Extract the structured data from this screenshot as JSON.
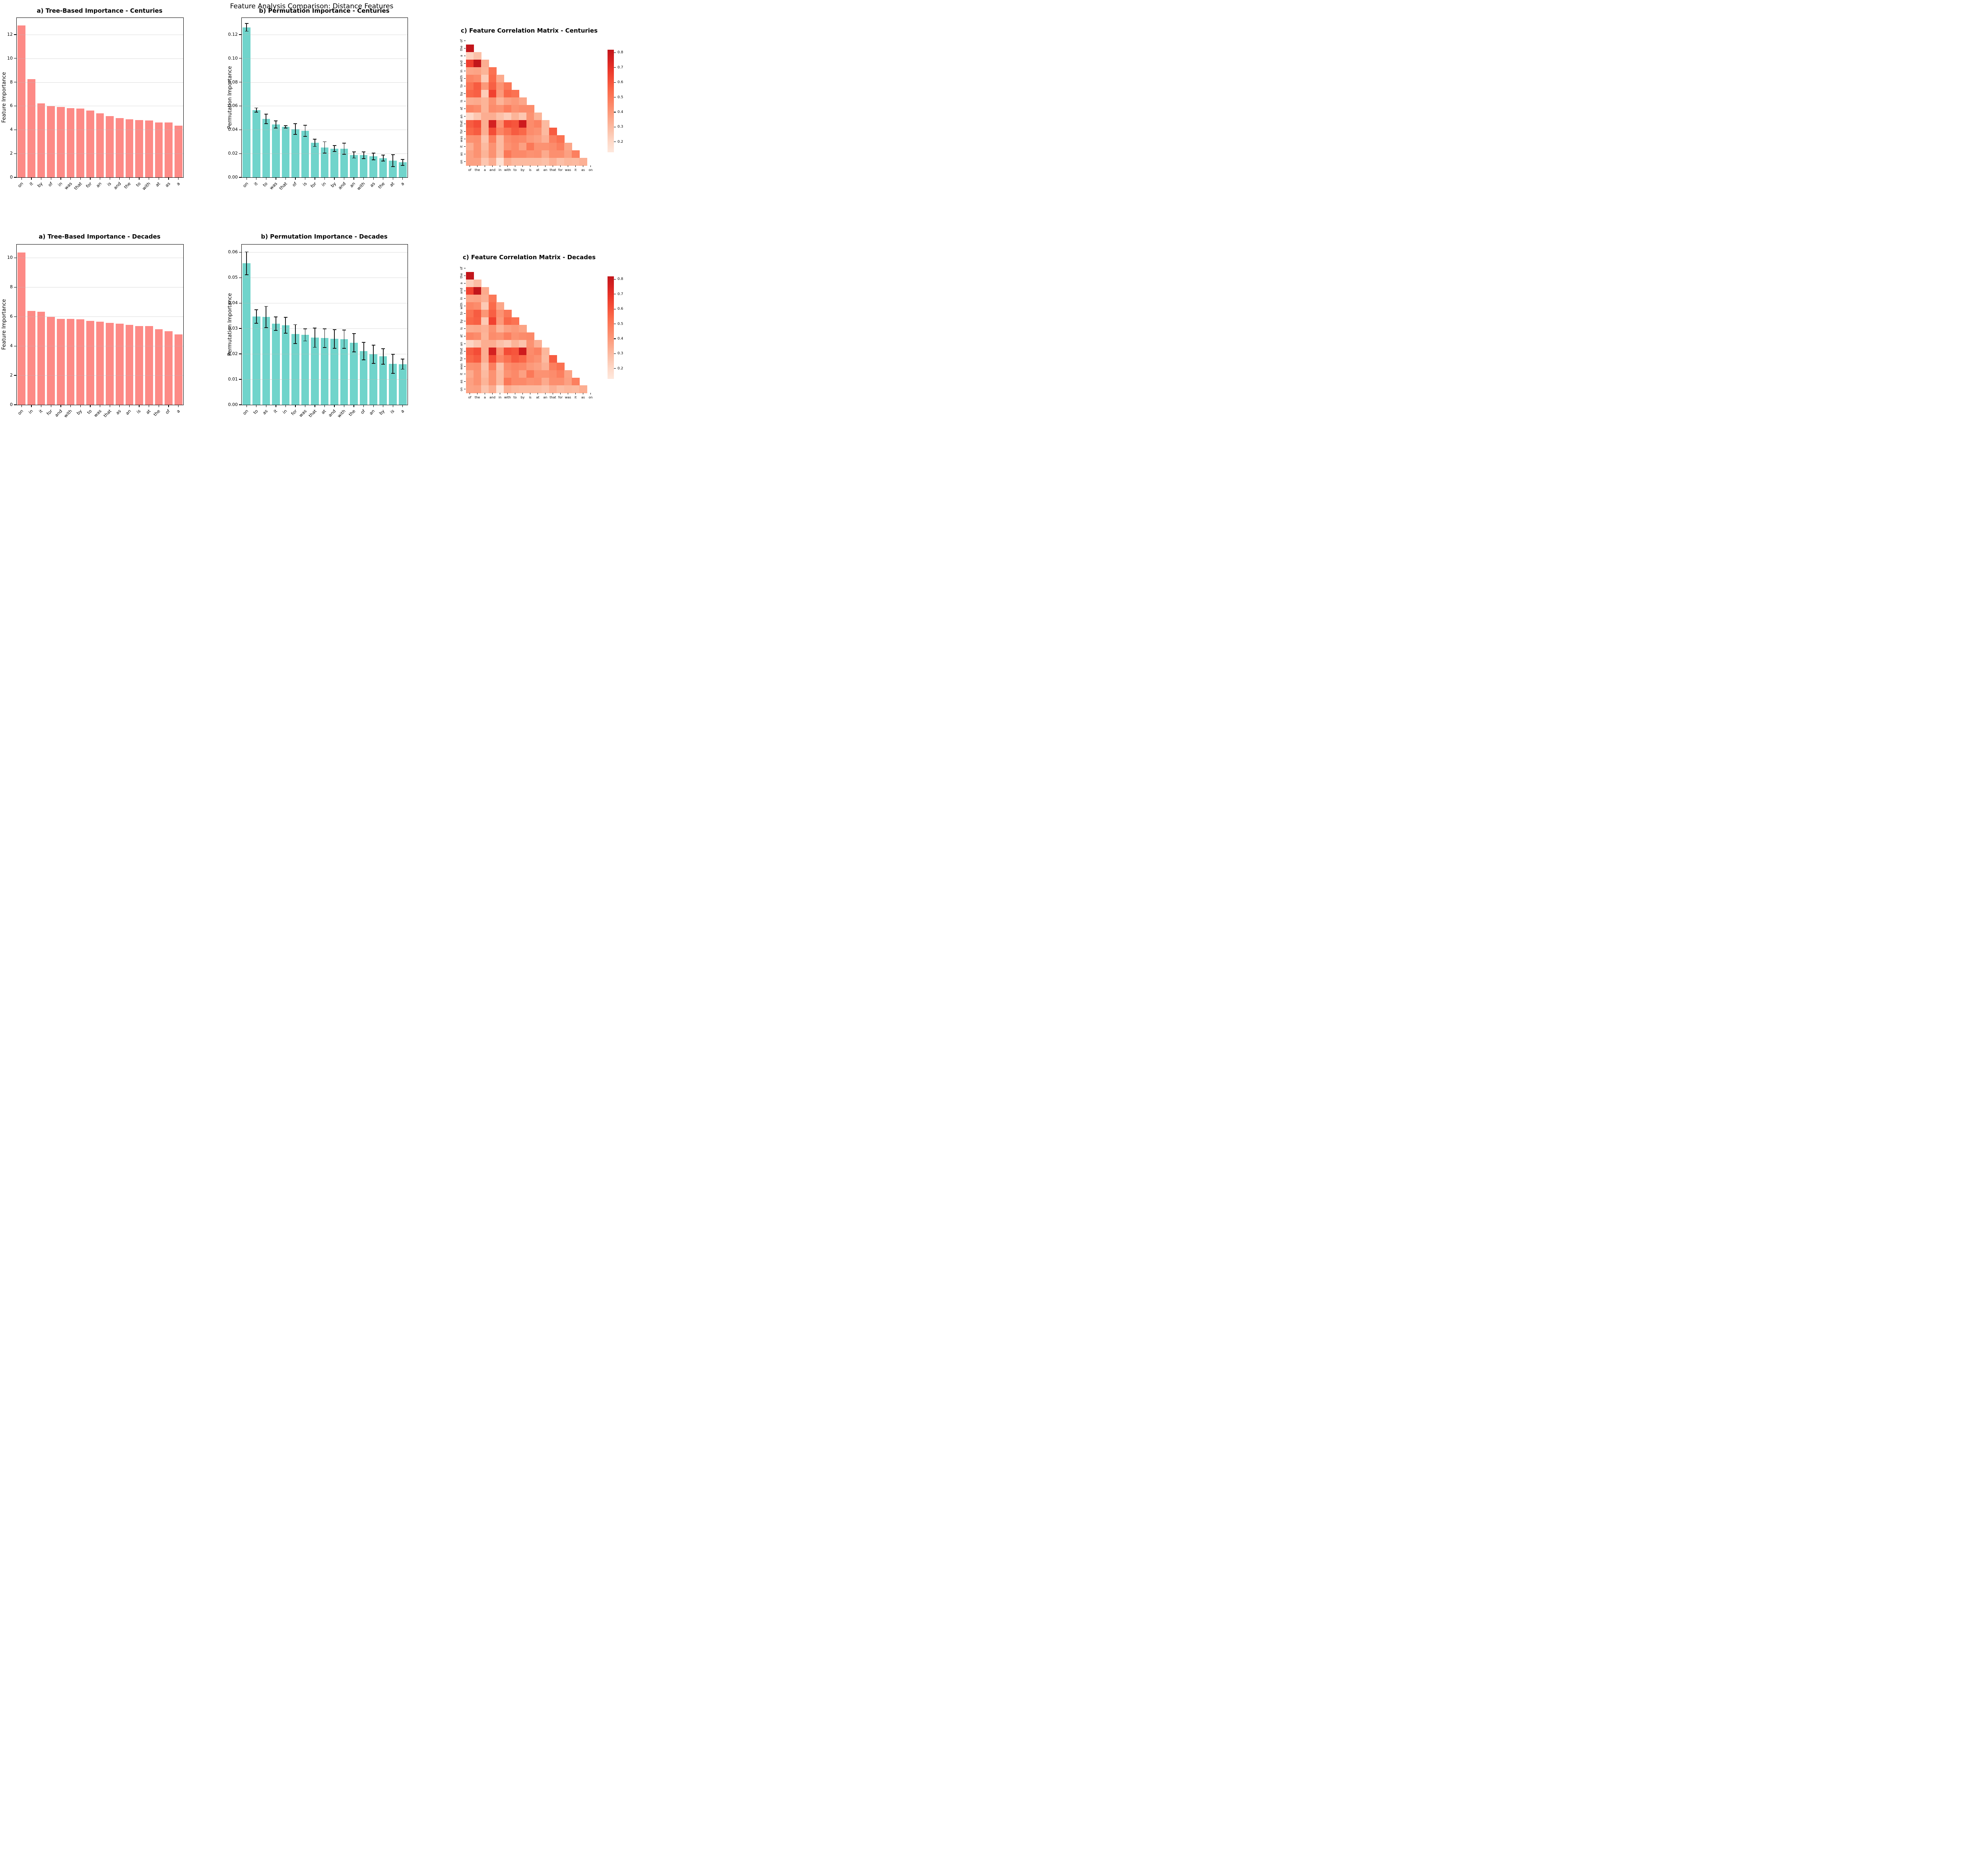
{
  "figure": {
    "title": "Feature Analysis Comparison: Distance Features"
  },
  "colors": {
    "bar_red": "#fd8a86",
    "bar_teal": "#70d4cb",
    "error_bar": "#151515",
    "grid_line": "#b9b9b9",
    "spine": "#000000",
    "heat_max": "#b01226",
    "heat_min": "#f7ded0"
  },
  "chart_data": [
    {
      "id": "tree-centuries",
      "type": "bar",
      "title": "a) Tree-Based Importance - Centuries",
      "ylabel": "Feature Importance",
      "categories": [
        "on",
        "it",
        "by",
        "of",
        "in",
        "was",
        "that",
        "for",
        "an",
        "is",
        "and",
        "the",
        "to",
        "with",
        "at",
        "as",
        "a"
      ],
      "values": [
        12.78,
        8.27,
        6.2,
        5.97,
        5.9,
        5.82,
        5.78,
        5.6,
        5.37,
        5.15,
        4.97,
        4.88,
        4.82,
        4.78,
        4.62,
        4.6,
        4.33
      ],
      "ylim": [
        0,
        13.4
      ],
      "yticks": [
        0,
        2,
        4,
        6,
        8,
        10,
        12
      ],
      "ytick_labels": [
        "0",
        "2",
        "4",
        "6",
        "8",
        "10",
        "12"
      ],
      "bar_color": "#fd8a86",
      "grid": true
    },
    {
      "id": "perm-centuries",
      "type": "bar",
      "title": "b) Permutation Importance - Centuries",
      "ylabel": "Permutation Importance",
      "categories": [
        "on",
        "it",
        "to",
        "was",
        "that",
        "of",
        "is",
        "for",
        "in",
        "by",
        "and",
        "an",
        "with",
        "as",
        "the",
        "at",
        "a"
      ],
      "values": [
        0.126,
        0.0565,
        0.049,
        0.0445,
        0.0425,
        0.0405,
        0.039,
        0.029,
        0.0252,
        0.0242,
        0.024,
        0.0188,
        0.0186,
        0.0176,
        0.0162,
        0.014,
        0.0126
      ],
      "errors": [
        0.0032,
        0.0018,
        0.004,
        0.003,
        0.001,
        0.0045,
        0.0047,
        0.0031,
        0.0047,
        0.0024,
        0.0047,
        0.0026,
        0.0028,
        0.0028,
        0.0024,
        0.005,
        0.0025
      ],
      "ylim": [
        0,
        0.134
      ],
      "yticks": [
        0,
        0.02,
        0.04,
        0.06,
        0.08,
        0.1,
        0.12
      ],
      "ytick_labels": [
        "0.00",
        "0.02",
        "0.04",
        "0.06",
        "0.08",
        "0.10",
        "0.12"
      ],
      "bar_color": "#70d4cb",
      "grid": true
    },
    {
      "id": "corr-centuries",
      "type": "heatmap",
      "title": "c) Feature Correlation Matrix - Centuries",
      "labels": [
        "of",
        "the",
        "a",
        "and",
        "in",
        "with",
        "to",
        "by",
        "is",
        "at",
        "an",
        "that",
        "for",
        "was",
        "it",
        "as",
        "on"
      ],
      "matrix": [
        [],
        [
          0.82
        ],
        [
          0.22,
          0.28
        ],
        [
          0.66,
          0.82,
          0.34
        ],
        [
          0.36,
          0.37,
          0.32,
          0.52
        ],
        [
          0.46,
          0.44,
          0.24,
          0.54,
          0.35
        ],
        [
          0.52,
          0.58,
          0.4,
          0.57,
          0.42,
          0.5
        ],
        [
          0.55,
          0.57,
          0.24,
          0.65,
          0.4,
          0.55,
          0.52
        ],
        [
          0.34,
          0.35,
          0.32,
          0.42,
          0.32,
          0.38,
          0.4,
          0.36
        ],
        [
          0.46,
          0.44,
          0.32,
          0.44,
          0.42,
          0.48,
          0.42,
          0.44,
          0.44
        ],
        [
          0.2,
          0.26,
          0.34,
          0.34,
          0.28,
          0.24,
          0.32,
          0.26,
          0.42,
          0.32
        ],
        [
          0.58,
          0.62,
          0.34,
          0.76,
          0.42,
          0.62,
          0.6,
          0.78,
          0.44,
          0.47,
          0.3
        ],
        [
          0.55,
          0.58,
          0.34,
          0.62,
          0.46,
          0.52,
          0.58,
          0.55,
          0.44,
          0.42,
          0.3,
          0.58
        ],
        [
          0.42,
          0.43,
          0.27,
          0.48,
          0.3,
          0.44,
          0.46,
          0.45,
          0.4,
          0.38,
          0.33,
          0.48,
          0.52
        ],
        [
          0.34,
          0.42,
          0.3,
          0.42,
          0.3,
          0.42,
          0.45,
          0.38,
          0.5,
          0.42,
          0.42,
          0.44,
          0.48,
          0.36
        ],
        [
          0.38,
          0.42,
          0.32,
          0.42,
          0.29,
          0.5,
          0.45,
          0.45,
          0.42,
          0.43,
          0.35,
          0.43,
          0.43,
          0.38,
          0.48
        ],
        [
          0.38,
          0.38,
          0.26,
          0.34,
          0.17,
          0.34,
          0.3,
          0.3,
          0.3,
          0.3,
          0.28,
          0.33,
          0.28,
          0.31,
          0.3,
          0.33
        ]
      ],
      "vmin": 0.13,
      "vmax": 0.82,
      "colorbar_ticks": [
        0.8,
        0.7,
        0.6,
        0.5,
        0.4,
        0.3,
        0.2
      ],
      "colorbar_tick_labels": [
        "0.8",
        "0.7",
        "0.6",
        "0.5",
        "0.4",
        "0.3",
        "0.2"
      ]
    },
    {
      "id": "tree-decades",
      "type": "bar",
      "title": "a) Tree-Based Importance - Decades",
      "ylabel": "Feature Importance",
      "categories": [
        "on",
        "in",
        "it",
        "for",
        "and",
        "with",
        "by",
        "to",
        "was",
        "that",
        "as",
        "an",
        "is",
        "at",
        "the",
        "of",
        "a"
      ],
      "values": [
        10.36,
        6.38,
        6.34,
        5.98,
        5.85,
        5.83,
        5.81,
        5.71,
        5.64,
        5.56,
        5.52,
        5.45,
        5.36,
        5.35,
        5.15,
        5.0,
        4.79
      ],
      "ylim": [
        0,
        10.9
      ],
      "yticks": [
        0,
        2,
        4,
        6,
        8,
        10
      ],
      "ytick_labels": [
        "0",
        "2",
        "4",
        "6",
        "8",
        "10"
      ],
      "bar_color": "#fd8a86",
      "grid": true
    },
    {
      "id": "perm-decades",
      "type": "bar",
      "title": "b) Permutation Importance - Decades",
      "ylabel": "Permutation Importance",
      "categories": [
        "on",
        "to",
        "as",
        "it",
        "in",
        "for",
        "was",
        "that",
        "at",
        "and",
        "with",
        "the",
        "of",
        "an",
        "by",
        "is",
        "a"
      ],
      "values": [
        0.0556,
        0.0347,
        0.0345,
        0.0319,
        0.0313,
        0.0278,
        0.0275,
        0.0264,
        0.0262,
        0.0259,
        0.0258,
        0.0244,
        0.0211,
        0.0199,
        0.019,
        0.0161,
        0.016
      ],
      "errors": [
        0.0045,
        0.0027,
        0.0042,
        0.0027,
        0.0031,
        0.0037,
        0.0024,
        0.0038,
        0.0037,
        0.0037,
        0.0036,
        0.0036,
        0.0034,
        0.0036,
        0.003,
        0.0038,
        0.002
      ],
      "ylim": [
        0,
        0.063
      ],
      "yticks": [
        0,
        0.01,
        0.02,
        0.03,
        0.04,
        0.05,
        0.06
      ],
      "ytick_labels": [
        "0.00",
        "0.01",
        "0.02",
        "0.03",
        "0.04",
        "0.05",
        "0.06"
      ],
      "bar_color": "#70d4cb",
      "grid": true
    },
    {
      "id": "corr-decades",
      "type": "heatmap",
      "title": "c) Feature Correlation Matrix - Decades",
      "labels": [
        "of",
        "the",
        "a",
        "and",
        "in",
        "with",
        "to",
        "by",
        "is",
        "at",
        "an",
        "that",
        "for",
        "was",
        "it",
        "as",
        "on"
      ],
      "matrix": [
        [],
        [
          0.82
        ],
        [
          0.23,
          0.29
        ],
        [
          0.65,
          0.82,
          0.35
        ],
        [
          0.36,
          0.37,
          0.33,
          0.5
        ],
        [
          0.46,
          0.44,
          0.25,
          0.54,
          0.36
        ],
        [
          0.52,
          0.58,
          0.41,
          0.57,
          0.42,
          0.5
        ],
        [
          0.55,
          0.57,
          0.25,
          0.65,
          0.4,
          0.55,
          0.52
        ],
        [
          0.34,
          0.35,
          0.33,
          0.42,
          0.32,
          0.38,
          0.4,
          0.37
        ],
        [
          0.46,
          0.44,
          0.32,
          0.44,
          0.42,
          0.48,
          0.42,
          0.44,
          0.45
        ],
        [
          0.21,
          0.26,
          0.34,
          0.34,
          0.28,
          0.25,
          0.32,
          0.27,
          0.42,
          0.33
        ],
        [
          0.58,
          0.62,
          0.34,
          0.76,
          0.42,
          0.62,
          0.6,
          0.78,
          0.44,
          0.47,
          0.31
        ],
        [
          0.55,
          0.58,
          0.34,
          0.62,
          0.46,
          0.52,
          0.58,
          0.55,
          0.45,
          0.42,
          0.3,
          0.58
        ],
        [
          0.42,
          0.43,
          0.28,
          0.48,
          0.28,
          0.44,
          0.46,
          0.45,
          0.4,
          0.38,
          0.33,
          0.48,
          0.52
        ],
        [
          0.35,
          0.42,
          0.3,
          0.42,
          0.3,
          0.42,
          0.45,
          0.38,
          0.5,
          0.42,
          0.42,
          0.44,
          0.48,
          0.37
        ],
        [
          0.38,
          0.42,
          0.32,
          0.42,
          0.3,
          0.5,
          0.45,
          0.45,
          0.42,
          0.43,
          0.35,
          0.43,
          0.43,
          0.38,
          0.48
        ],
        [
          0.37,
          0.38,
          0.27,
          0.34,
          0.16,
          0.34,
          0.31,
          0.3,
          0.3,
          0.3,
          0.28,
          0.33,
          0.29,
          0.31,
          0.3,
          0.34
        ]
      ],
      "vmin": 0.13,
      "vmax": 0.82,
      "colorbar_ticks": [
        0.8,
        0.7,
        0.6,
        0.5,
        0.4,
        0.3,
        0.2
      ],
      "colorbar_tick_labels": [
        "0.8",
        "0.7",
        "0.6",
        "0.5",
        "0.4",
        "0.3",
        "0.2"
      ]
    }
  ]
}
